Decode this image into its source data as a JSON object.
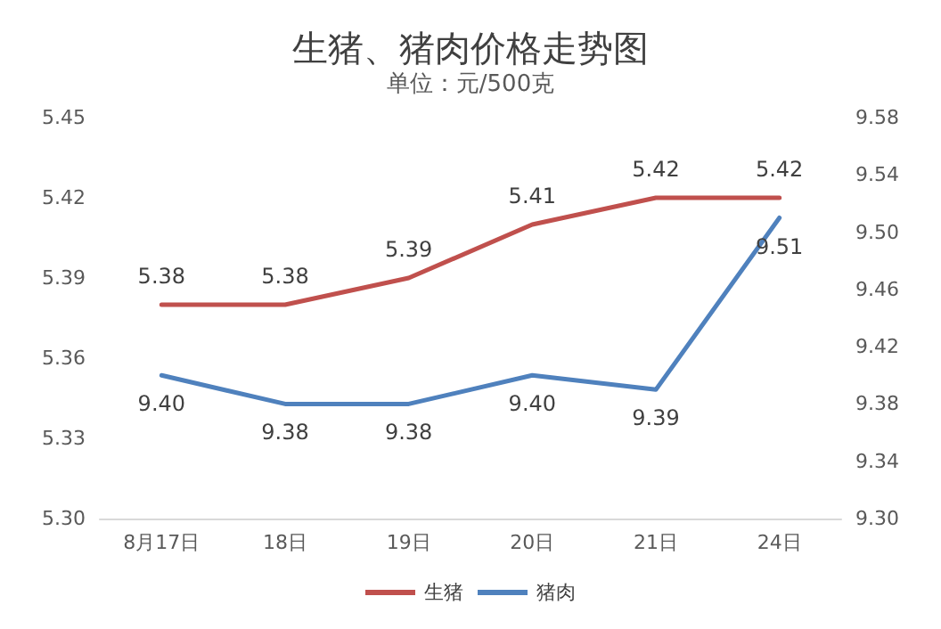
{
  "chart_data": {
    "type": "line",
    "title": "生猪、猪肉价格走势图",
    "subtitle": "单位：元/500克",
    "categories": [
      "8月17日",
      "18日",
      "19日",
      "20日",
      "21日",
      "24日"
    ],
    "series": [
      {
        "name": "生猪",
        "color": "#c0504d",
        "values": [
          5.38,
          5.38,
          5.39,
          5.41,
          5.42,
          5.42
        ],
        "value_labels": [
          "5.38",
          "5.38",
          "5.39",
          "5.41",
          "5.42",
          "5.42"
        ]
      },
      {
        "name": "猪肉",
        "color": "#4f81bd",
        "axis": "y2",
        "values": [
          9.4,
          9.38,
          9.38,
          9.4,
          9.39,
          9.51
        ],
        "value_labels": [
          "9.40",
          "9.38",
          "9.38",
          "9.40",
          "9.39",
          "9.51"
        ]
      }
    ],
    "ylim": [
      5.3,
      5.45
    ],
    "yticks": [
      {
        "value": 5.3,
        "label": "5.30"
      },
      {
        "value": 5.33,
        "label": "5.33"
      },
      {
        "value": 5.36,
        "label": "5.36"
      },
      {
        "value": 5.39,
        "label": "5.39"
      },
      {
        "value": 5.42,
        "label": "5.42"
      },
      {
        "value": 5.45,
        "label": "5.45"
      }
    ],
    "y2lim": [
      9.3,
      9.58
    ],
    "y2ticks": [
      {
        "value": 9.3,
        "label": "9.30"
      },
      {
        "value": 9.34,
        "label": "9.34"
      },
      {
        "value": 9.38,
        "label": "9.38"
      },
      {
        "value": 9.42,
        "label": "9.42"
      },
      {
        "value": 9.46,
        "label": "9.46"
      },
      {
        "value": 9.5,
        "label": "9.50"
      },
      {
        "value": 9.54,
        "label": "9.54"
      },
      {
        "value": 9.58,
        "label": "9.58"
      }
    ],
    "grid": false,
    "legend": "bottom",
    "marker": "none",
    "line_style": "solid"
  }
}
